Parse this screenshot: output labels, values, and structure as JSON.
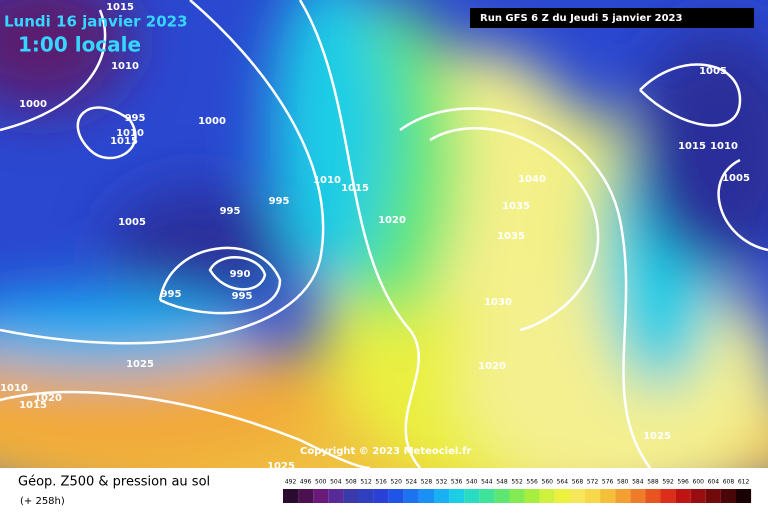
{
  "header": {
    "date": "Lundi 16 janvier 2023",
    "time": "1:00 locale",
    "run": "Run GFS 6 Z du Jeudi 5 janvier 2023"
  },
  "copyright": "Copyright © 2023 Meteociel.fr",
  "footer": {
    "title": "Géop. Z500 & pression au sol",
    "lead": "(+ 258h)"
  },
  "isobar_labels": [
    1015,
    1010,
    1000,
    1005,
    995,
    1010,
    1015,
    1000,
    1015,
    1010,
    1005,
    1010,
    1015,
    1040,
    1035,
    995,
    995,
    1005,
    1020,
    1035,
    990,
    995,
    995,
    1030,
    1025,
    1020,
    1020,
    1010,
    1015,
    1025,
    1025
  ],
  "scale": {
    "values": [
      492,
      496,
      500,
      504,
      508,
      512,
      516,
      520,
      524,
      528,
      532,
      536,
      540,
      544,
      548,
      552,
      556,
      560,
      564,
      568,
      572,
      576,
      580,
      584,
      588,
      592,
      596,
      600,
      604,
      608,
      612
    ],
    "colors": [
      "#2a0a2e",
      "#4a1050",
      "#6a1a78",
      "#5a2a9a",
      "#3a3aaa",
      "#303fbf",
      "#2a40d8",
      "#1f55e6",
      "#1e72f0",
      "#1a90f4",
      "#18b0f2",
      "#1ccde6",
      "#28dcc2",
      "#3ee29a",
      "#5ee673",
      "#82ea52",
      "#a8ee40",
      "#cff03c",
      "#eef03e",
      "#f6e85a",
      "#f6d84a",
      "#f4c03a",
      "#f2a030",
      "#ee7c28",
      "#e85420",
      "#dc2e1a",
      "#c01414",
      "#980e10",
      "#700a0c",
      "#4a0608",
      "#1a0204"
    ]
  }
}
